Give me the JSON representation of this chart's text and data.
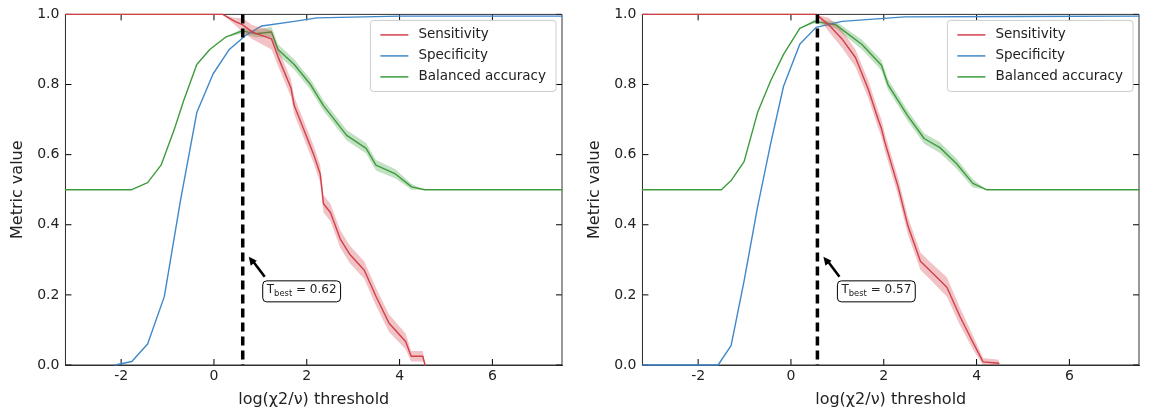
{
  "chart_data": [
    {
      "type": "line",
      "xlabel": "log(χ2/ν) threshold",
      "ylabel": "Metric value",
      "xlim": [
        -3.2,
        7.5
      ],
      "ylim": [
        0,
        1
      ],
      "xticks": [
        -2,
        0,
        2,
        4,
        6
      ],
      "yticks": [
        {
          "value": 0,
          "label": "0.0"
        },
        {
          "value": 0.2,
          "label": "0.2"
        },
        {
          "value": 0.4,
          "label": "0.4"
        },
        {
          "value": 0.6,
          "label": "0.6"
        },
        {
          "value": 0.8,
          "label": "0.8"
        },
        {
          "value": 1,
          "label": "1.0"
        }
      ],
      "grid": false,
      "legend": "top right",
      "line_style": "solid",
      "ref_lines": [
        {
          "axis": "x",
          "value": 0.62,
          "label": "T$_{best}$ = 0.62",
          "color": "#000000",
          "line_style": "dashed"
        }
      ],
      "series": [
        {
          "name": "Sensitivity",
          "color": "#d2404a",
          "x": [
            -3.2,
            0.19,
            0.45,
            0.62,
            0.82,
            1.24,
            1.39,
            1.66,
            1.73,
            1.94,
            2.15,
            2.29,
            2.36,
            2.51,
            2.72,
            2.93,
            3.24,
            3.49,
            3.77,
            4.13,
            4.25,
            4.5,
            4.55
          ],
          "values": [
            1,
            1,
            0.98,
            0.97,
            0.95,
            0.93,
            0.876,
            0.79,
            0.74,
            0.67,
            0.6,
            0.545,
            0.46,
            0.435,
            0.36,
            0.315,
            0.27,
            0.196,
            0.12,
            0.067,
            0.025,
            0.025,
            0
          ],
          "lower": [
            1,
            1,
            0.97,
            0.95,
            0.93,
            0.9,
            0.85,
            0.765,
            0.715,
            0.645,
            0.575,
            0.52,
            0.435,
            0.41,
            0.335,
            0.29,
            0.245,
            0.17,
            0.095,
            0.045,
            0.01,
            0.01,
            0
          ],
          "upper": [
            1,
            1,
            0.99,
            0.99,
            0.97,
            0.955,
            0.9,
            0.815,
            0.765,
            0.695,
            0.625,
            0.57,
            0.485,
            0.46,
            0.385,
            0.34,
            0.295,
            0.22,
            0.145,
            0.09,
            0.04,
            0.04,
            0
          ]
        },
        {
          "name": "Specificity",
          "color": "#3f88c9",
          "x": [
            -2.13,
            -1.77,
            -1.43,
            -1.07,
            -0.72,
            -0.37,
            -0.02,
            0.33,
            0.68,
            1.03,
            1.73,
            2.22,
            4,
            7.5
          ],
          "values": [
            0,
            0.01,
            0.06,
            0.195,
            0.47,
            0.72,
            0.83,
            0.9,
            0.94,
            0.967,
            0.98,
            0.99,
            0.995,
            0.995
          ]
        },
        {
          "name": "Balanced accuracy",
          "color": "#3c9c3c",
          "x": [
            -3.2,
            -1.77,
            -1.43,
            -1.14,
            -0.86,
            -0.65,
            -0.37,
            -0.09,
            0.25,
            0.61,
            0.89,
            1.24,
            1.38,
            1.73,
            2.08,
            2.36,
            2.86,
            3.28,
            3.49,
            3.91,
            4.26,
            4.54,
            7.5
          ],
          "values": [
            0.5,
            0.5,
            0.52,
            0.57,
            0.67,
            0.755,
            0.857,
            0.9,
            0.935,
            0.953,
            0.945,
            0.95,
            0.9,
            0.857,
            0.8,
            0.74,
            0.655,
            0.618,
            0.57,
            0.545,
            0.508,
            0.5,
            0.5
          ],
          "lower": [
            0.5,
            0.5,
            0.52,
            0.57,
            0.67,
            0.755,
            0.857,
            0.9,
            0.935,
            0.945,
            0.935,
            0.935,
            0.885,
            0.842,
            0.785,
            0.725,
            0.64,
            0.603,
            0.555,
            0.532,
            0.5,
            0.5,
            0.5
          ],
          "upper": [
            0.5,
            0.5,
            0.52,
            0.57,
            0.67,
            0.755,
            0.857,
            0.9,
            0.935,
            0.96,
            0.955,
            0.965,
            0.915,
            0.872,
            0.815,
            0.755,
            0.67,
            0.633,
            0.585,
            0.558,
            0.516,
            0.5,
            0.5
          ]
        }
      ]
    },
    {
      "type": "line",
      "xlabel": "log(χ2/ν) threshold",
      "ylabel": "Metric value",
      "xlim": [
        -3.2,
        7.5
      ],
      "ylim": [
        0,
        1
      ],
      "xticks": [
        -2,
        0,
        2,
        4,
        6
      ],
      "yticks": [
        {
          "value": 0,
          "label": "0.0"
        },
        {
          "value": 0.2,
          "label": "0.2"
        },
        {
          "value": 0.4,
          "label": "0.4"
        },
        {
          "value": 0.6,
          "label": "0.6"
        },
        {
          "value": 0.8,
          "label": "0.8"
        },
        {
          "value": 1,
          "label": "1.0"
        }
      ],
      "grid": false,
      "legend": "top right",
      "line_style": "solid",
      "ref_lines": [
        {
          "axis": "x",
          "value": 0.57,
          "label": "T$_{best}$ = 0.57",
          "color": "#000000",
          "line_style": "dashed"
        }
      ],
      "series": [
        {
          "name": "Sensitivity",
          "color": "#d2404a",
          "x": [
            -3.2,
            0.54,
            0.82,
            1.1,
            1.39,
            1.67,
            1.88,
            1.95,
            2.02,
            2.31,
            2.52,
            2.79,
            3.0,
            3.36,
            3.64,
            3.92,
            4.14,
            4.48
          ],
          "values": [
            1,
            1,
            0.97,
            0.93,
            0.877,
            0.785,
            0.7,
            0.674,
            0.637,
            0.508,
            0.397,
            0.296,
            0.269,
            0.222,
            0.139,
            0.065,
            0.009,
            0.005
          ],
          "lower": [
            1,
            1,
            0.95,
            0.905,
            0.85,
            0.76,
            0.675,
            0.65,
            0.612,
            0.483,
            0.372,
            0.271,
            0.244,
            0.195,
            0.114,
            0.045,
            0,
            0
          ],
          "upper": [
            1,
            1,
            0.99,
            0.955,
            0.9,
            0.81,
            0.725,
            0.7,
            0.662,
            0.533,
            0.422,
            0.321,
            0.294,
            0.25,
            0.164,
            0.085,
            0.02,
            0.015
          ]
        },
        {
          "name": "Specificity",
          "color": "#3f88c9",
          "x": [
            -3.2,
            -1.57,
            -1.29,
            -1.01,
            -0.72,
            -0.44,
            -0.16,
            0.19,
            0.54,
            1.1,
            2.45,
            7.5
          ],
          "values": [
            0,
            0,
            0.055,
            0.24,
            0.45,
            0.63,
            0.795,
            0.915,
            0.963,
            0.98,
            0.993,
            0.995
          ]
        },
        {
          "name": "Balanced accuracy",
          "color": "#3c9c3c",
          "x": [
            -3.2,
            -1.5,
            -1.29,
            -1.01,
            -0.72,
            -0.44,
            -0.16,
            0.19,
            0.51,
            0.97,
            1.53,
            1.95,
            2.09,
            2.52,
            2.87,
            3.21,
            3.57,
            3.92,
            4.21,
            7.5
          ],
          "values": [
            0.5,
            0.5,
            0.526,
            0.58,
            0.72,
            0.81,
            0.886,
            0.96,
            0.98,
            0.97,
            0.914,
            0.855,
            0.8,
            0.71,
            0.646,
            0.62,
            0.574,
            0.518,
            0.5,
            0.5
          ],
          "lower": [
            0.5,
            0.5,
            0.526,
            0.58,
            0.72,
            0.81,
            0.886,
            0.96,
            0.975,
            0.96,
            0.9,
            0.84,
            0.785,
            0.695,
            0.631,
            0.605,
            0.56,
            0.506,
            0.5,
            0.5
          ],
          "upper": [
            0.5,
            0.5,
            0.526,
            0.58,
            0.72,
            0.81,
            0.886,
            0.96,
            0.985,
            0.98,
            0.928,
            0.87,
            0.815,
            0.725,
            0.661,
            0.635,
            0.588,
            0.53,
            0.5,
            0.5
          ]
        }
      ]
    }
  ]
}
